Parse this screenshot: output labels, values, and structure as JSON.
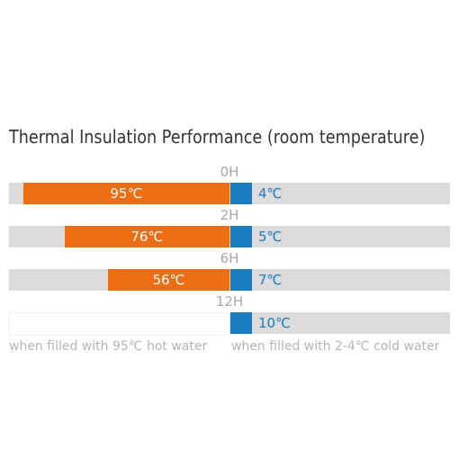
{
  "title": "Thermal Insulation Performance (room temperature)",
  "colors": {
    "hot": "#ec6d12",
    "cold": "#1a7cc0",
    "track": "#dcdcdc",
    "label": "#a8a8a8"
  },
  "chart_data": {
    "type": "bar",
    "orientation": "horizontal-diverging",
    "title": "Thermal Insulation Performance (room temperature)",
    "categories": [
      "0H",
      "2H",
      "6H",
      "12H"
    ],
    "series": [
      {
        "name": "when filled with 95℃ hot water",
        "values": [
          95,
          76,
          56,
          0
        ],
        "labels": [
          "95℃",
          "76℃",
          "56℃",
          ""
        ]
      },
      {
        "name": "when filled with 2-4℃ cold water",
        "values": [
          4,
          5,
          7,
          10
        ],
        "labels": [
          "4℃",
          "5℃",
          "7℃",
          "10℃"
        ]
      }
    ],
    "hot_xlim": [
      0,
      100
    ],
    "cold_xlim": [
      0,
      100
    ],
    "legend": "bottom",
    "grid": false
  }
}
